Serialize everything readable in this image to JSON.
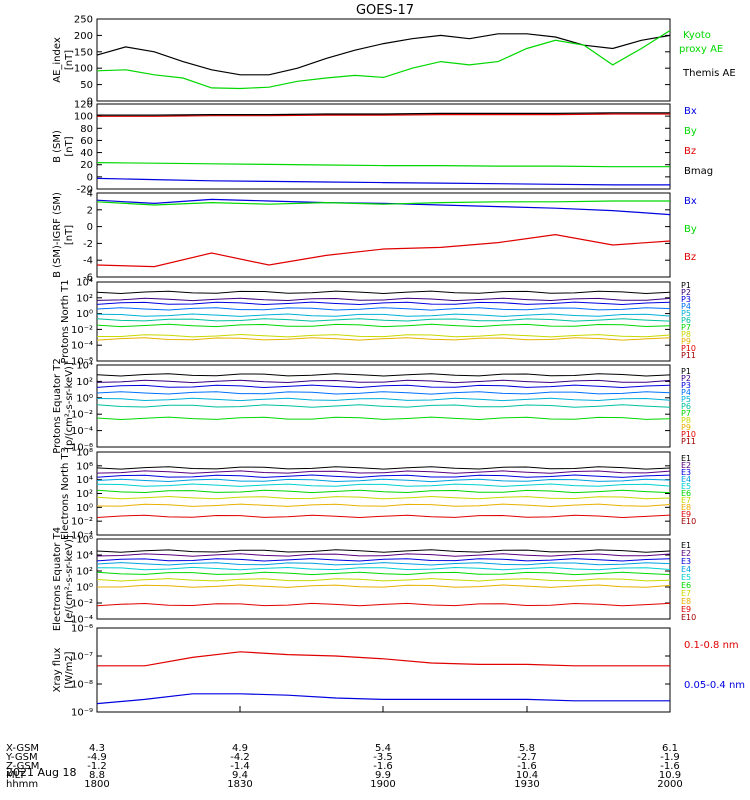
{
  "title": "GOES-17",
  "date_label": "2021 Aug 18",
  "colors": {
    "black": "#000000",
    "red": "#e00000",
    "green": "#00d800",
    "blue": "#0000e0"
  },
  "chart_data": [
    {
      "type": "line",
      "ylabel": "AE_index [nT]",
      "yticks": [
        "250",
        "200",
        "150",
        "100",
        "50",
        "0"
      ],
      "ylim": [
        0,
        250
      ],
      "x_minutes": [
        0,
        6,
        12,
        18,
        24,
        30,
        36,
        42,
        48,
        54,
        60,
        66,
        72,
        78,
        84,
        90,
        96,
        102,
        108,
        114,
        120
      ],
      "series": [
        {
          "name": "Themis AE",
          "color": "#000000",
          "values": [
            140,
            165,
            150,
            120,
            95,
            80,
            80,
            100,
            130,
            155,
            175,
            190,
            200,
            190,
            205,
            205,
            195,
            170,
            160,
            185,
            200
          ]
        },
        {
          "name": "Kyoto proxy AE",
          "color": "#00d800",
          "values": [
            92,
            95,
            80,
            70,
            40,
            38,
            42,
            60,
            70,
            78,
            72,
            100,
            120,
            110,
            120,
            160,
            185,
            170,
            110,
            160,
            215
          ]
        }
      ],
      "legend": [
        "Kyoto proxy AE",
        "Themis AE"
      ]
    },
    {
      "type": "line",
      "ylabel": "B (SM) [nT]",
      "yticks": [
        "120",
        "100",
        "80",
        "60",
        "40",
        "20",
        "0",
        "-20"
      ],
      "ylim": [
        -25,
        120
      ],
      "series": [
        {
          "name": "Bx",
          "color": "#0000e0",
          "values": [
            -7,
            -9,
            -11,
            -12,
            -13,
            -14,
            -15,
            -16,
            -17,
            -18,
            -18
          ]
        },
        {
          "name": "By",
          "color": "#00d800",
          "values": [
            20,
            19,
            18,
            17,
            16,
            15,
            15,
            14,
            14,
            13,
            13
          ]
        },
        {
          "name": "Bz",
          "color": "#e00000",
          "values": [
            99,
            99,
            100,
            100,
            101,
            101,
            102,
            102,
            102,
            103,
            103
          ]
        },
        {
          "name": "Bmag",
          "color": "#000000",
          "values": [
            101,
            101,
            102,
            102,
            103,
            103,
            104,
            104,
            104,
            105,
            105
          ]
        }
      ],
      "legend": [
        "Bx",
        "By",
        "Bz",
        "Bmag"
      ]
    },
    {
      "type": "line",
      "ylabel": "B (SM)-IGRF (SM) [nT]",
      "yticks": [
        "4",
        "2",
        "0",
        "-2",
        "-4",
        "-6"
      ],
      "ylim": [
        -6.5,
        4
      ],
      "series": [
        {
          "name": "Bx",
          "color": "#0000e0",
          "values": [
            3.1,
            2.7,
            3.2,
            3.0,
            2.8,
            2.7,
            2.5,
            2.3,
            2.1,
            1.8,
            1.3
          ]
        },
        {
          "name": "By",
          "color": "#00d800",
          "values": [
            2.9,
            2.5,
            2.8,
            2.6,
            2.8,
            2.6,
            2.8,
            2.9,
            2.9,
            3.0,
            3.0
          ]
        },
        {
          "name": "Bz",
          "color": "#e00000",
          "values": [
            -5.0,
            -5.2,
            -3.5,
            -5.0,
            -3.8,
            -3.0,
            -2.8,
            -2.2,
            -1.2,
            -2.5,
            -2.0
          ]
        }
      ],
      "legend": [
        "Bx",
        "By",
        "Bz"
      ]
    },
    {
      "type": "line",
      "ylabel": "Protons North T1",
      "yticks": [
        "10⁴",
        "10²",
        "10⁰",
        "10⁻²",
        "10⁻⁴",
        "10⁻⁶"
      ],
      "log_exponent_range": [
        -6,
        4
      ],
      "levels_log10": [
        2.7,
        1.8,
        1.3,
        0.6,
        -0.2,
        -0.8,
        -1.5,
        -2.8,
        -3.2,
        null,
        null
      ],
      "legend": [
        "P1",
        "P2",
        "P3",
        "P4",
        "P5",
        "P6",
        "P7",
        "P8",
        "P9",
        "P10",
        "P11"
      ],
      "legend_colors": [
        "#000000",
        "#3a0080",
        "#0000e0",
        "#0070ff",
        "#00b0d8",
        "#00c0a0",
        "#00d800",
        "#c8d800",
        "#e8b000",
        "#e00000",
        "#a00000"
      ]
    },
    {
      "type": "line",
      "ylabel": "Protons Equator T2 [p/(cm²-s-sr-keV)]",
      "yticks": [
        "10⁴",
        "10²",
        "10⁰",
        "10⁻²",
        "10⁻⁴",
        "10⁻⁶"
      ],
      "log_exponent_range": [
        -6,
        4
      ],
      "levels_log10": [
        2.8,
        2.0,
        1.4,
        0.6,
        -0.2,
        -1.0,
        -2.5,
        null,
        null,
        null,
        null
      ],
      "legend": [
        "P1",
        "P2",
        "P3",
        "P4",
        "P5",
        "P6",
        "P7",
        "P8",
        "P9",
        "P10",
        "P11"
      ],
      "legend_colors": [
        "#000000",
        "#3a0080",
        "#0000e0",
        "#0070ff",
        "#00b0d8",
        "#00c0a0",
        "#00d800",
        "#c8d800",
        "#e8b000",
        "#e00000",
        "#a00000"
      ]
    },
    {
      "type": "line",
      "ylabel": "Electrons North T3",
      "yticks": [
        "10⁸",
        "10⁶",
        "10⁴",
        "10²",
        "10⁰",
        "10⁻²",
        "10⁻⁴"
      ],
      "log_exponent_range": [
        -4,
        8
      ],
      "levels_log10": [
        5.7,
        5.1,
        4.5,
        3.9,
        3.2,
        2.3,
        1.4,
        0.3,
        -1.3,
        null
      ],
      "legend": [
        "E1",
        "E2",
        "E3",
        "E4",
        "E5",
        "E6",
        "E7",
        "E8",
        "E9",
        "E10"
      ],
      "legend_colors": [
        "#000000",
        "#5a0080",
        "#0000e0",
        "#00a0e0",
        "#00d0d0",
        "#00d800",
        "#c8d800",
        "#e8b000",
        "#e00000",
        "#a00000"
      ]
    },
    {
      "type": "line",
      "ylabel": "Electrons Equator T4 [e/(cm²-s-sr-keV)]",
      "yticks": [
        "10⁶",
        "10⁴",
        "10²",
        "10⁰",
        "10⁻²",
        "10⁻⁴"
      ],
      "log_exponent_range": [
        -4,
        6
      ],
      "levels_log10": [
        4.5,
        4.0,
        3.4,
        2.9,
        2.3,
        1.7,
        0.9,
        0.1,
        -2.2,
        null
      ],
      "legend": [
        "E1",
        "E2",
        "E3",
        "E4",
        "E5",
        "E6",
        "E7",
        "E8",
        "E9",
        "E10"
      ],
      "legend_colors": [
        "#000000",
        "#5a0080",
        "#0000e0",
        "#00a0e0",
        "#00d0d0",
        "#00d800",
        "#c8d800",
        "#e8b000",
        "#e00000",
        "#a00000"
      ]
    },
    {
      "type": "line",
      "ylabel": "Xray flux [W/m2]",
      "yticks": [
        "10⁻⁶",
        "10⁻⁷",
        "10⁻⁸",
        "10⁻⁹"
      ],
      "log_exponent_range": [
        -9,
        -6
      ],
      "x_minutes": [
        0,
        10,
        20,
        30,
        40,
        50,
        60,
        70,
        80,
        90,
        100,
        110,
        120
      ],
      "series": [
        {
          "name": "0.1-0.8 nm",
          "color": "#e00000",
          "values_log10": [
            -7.35,
            -7.35,
            -7.05,
            -6.85,
            -6.95,
            -7.0,
            -7.1,
            -7.25,
            -7.3,
            -7.3,
            -7.35,
            -7.35,
            -7.35
          ]
        },
        {
          "name": "0.05-0.4 nm",
          "color": "#0000e0",
          "values_log10": [
            -8.7,
            -8.55,
            -8.35,
            -8.35,
            -8.4,
            -8.5,
            -8.55,
            -8.55,
            -8.55,
            -8.55,
            -8.6,
            -8.6,
            -8.6
          ]
        }
      ],
      "legend": [
        "0.1-0.8 nm",
        "0.05-0.4 nm"
      ]
    }
  ],
  "xaxis": {
    "row_labels": [
      "X-GSM",
      "Y-GSM",
      "Z-GSM",
      "MLT",
      "hhmm"
    ],
    "columns": [
      [
        "4.3",
        "-4.9",
        "-1.2",
        "8.8",
        "1800"
      ],
      [
        "4.9",
        "-4.2",
        "-1.4",
        "9.4",
        "1830"
      ],
      [
        "5.4",
        "-3.5",
        "-1.6",
        "9.9",
        "1900"
      ],
      [
        "5.8",
        "-2.7",
        "-1.6",
        "10.4",
        "1930"
      ],
      [
        "6.1",
        "-1.9",
        "-1.6",
        "10.9",
        "2000"
      ]
    ]
  }
}
